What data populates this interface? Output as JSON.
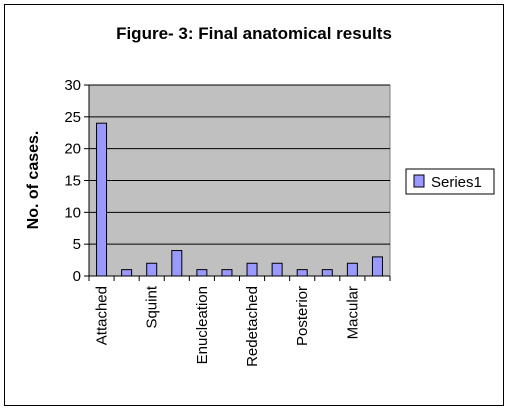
{
  "chart_data": {
    "type": "bar",
    "title": "Figure- 3: Final anatomical results",
    "xlabel": "",
    "ylabel": "No. of cases.",
    "ylim": [
      0,
      30
    ],
    "yticks": [
      0,
      5,
      10,
      15,
      20,
      25,
      30
    ],
    "grid": true,
    "legend": "right",
    "categories": [
      "Attached",
      "",
      "Squint",
      "",
      "Enucleation",
      "",
      "Redetached",
      "",
      "Posterior",
      "",
      "Macular",
      ""
    ],
    "series": [
      {
        "name": "Series1",
        "values": [
          24,
          1,
          2,
          4,
          1,
          1,
          2,
          2,
          1,
          1,
          2,
          3
        ]
      }
    ],
    "colors": {
      "bar": "#9999ff",
      "plot_bg": "#c0c0c0"
    }
  }
}
